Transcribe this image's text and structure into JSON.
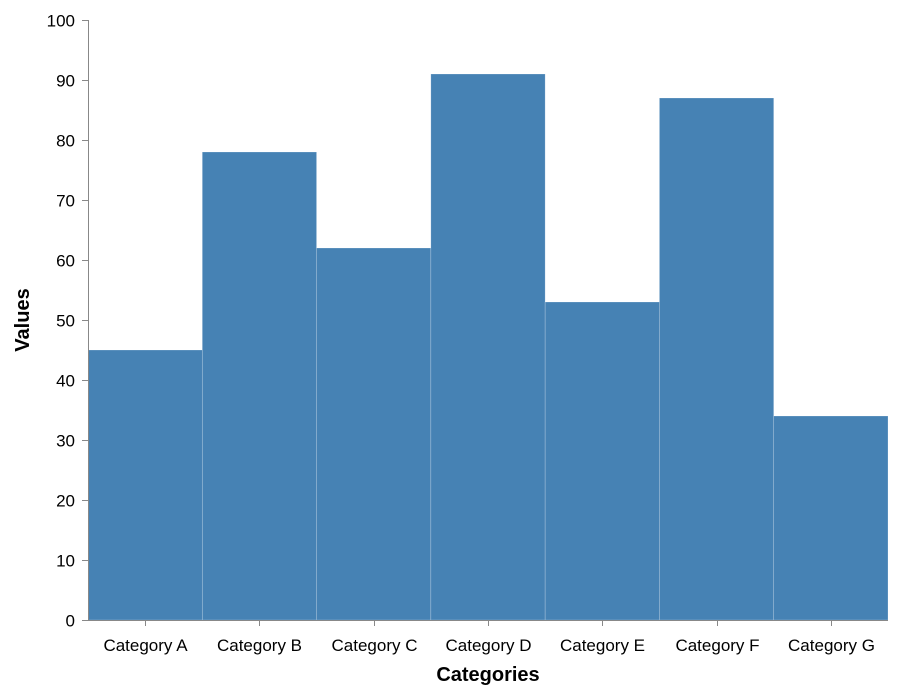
{
  "chart_data": {
    "type": "bar",
    "categories": [
      "Category A",
      "Category B",
      "Category C",
      "Category D",
      "Category E",
      "Category F",
      "Category G"
    ],
    "values": [
      45,
      78,
      62,
      91,
      53,
      87,
      34
    ],
    "title": "",
    "xlabel": "Categories",
    "ylabel": "Values",
    "ylim": [
      0,
      100
    ],
    "yticks": [
      0,
      10,
      20,
      30,
      40,
      50,
      60,
      70,
      80,
      90,
      100
    ],
    "grid": false,
    "bar_color": "#4682b4"
  }
}
